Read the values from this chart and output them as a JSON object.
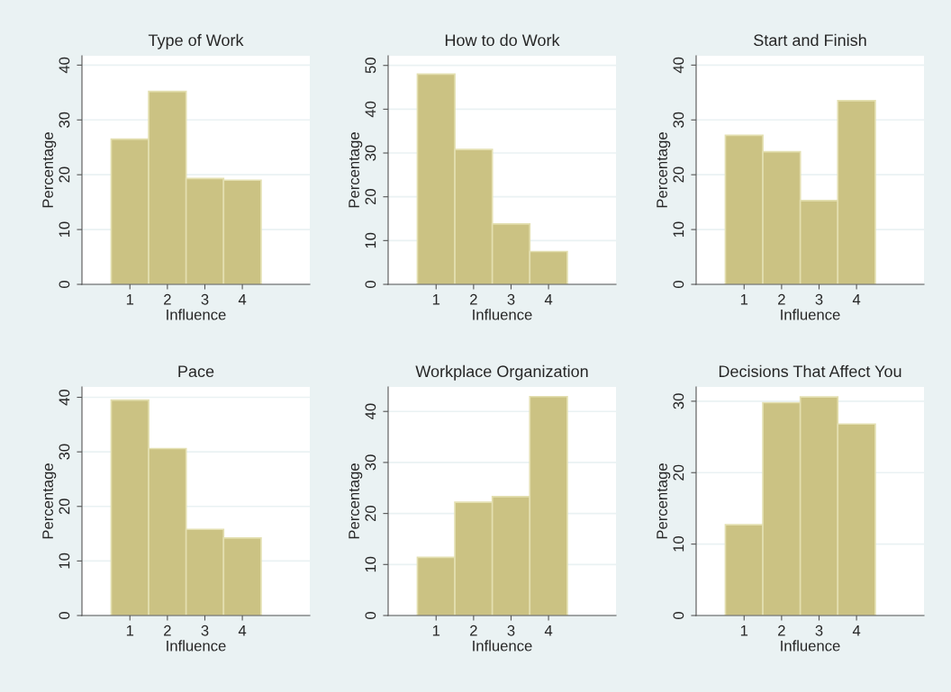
{
  "chart_data": [
    {
      "type": "histogram",
      "title": "Type of Work",
      "xlabel": "Influence",
      "ylabel": "Percentage",
      "bins": [
        0.5,
        1.5,
        2.5,
        3.5,
        4.5,
        5.5
      ],
      "values": [
        26.5,
        35.2,
        19.3,
        19.0,
        null
      ],
      "color": "#cbc283",
      "xlim": [
        -0.28,
        5.8
      ],
      "xticks": [
        1,
        2,
        3,
        4
      ],
      "ylim": [
        0,
        41.7
      ],
      "yticks": [
        0,
        10,
        20,
        30,
        40
      ],
      "grid": "y"
    },
    {
      "type": "histogram",
      "title": "How to do Work",
      "xlabel": "Influence",
      "ylabel": "Percentage",
      "bins": [
        0.5,
        1.5,
        2.5,
        3.5,
        4.5,
        5.5
      ],
      "values": [
        48.0,
        30.8,
        13.8,
        7.5,
        null
      ],
      "color": "#cbc283",
      "xlim": [
        -0.28,
        5.8
      ],
      "xticks": [
        1,
        2,
        3,
        4
      ],
      "ylim": [
        0,
        52.2
      ],
      "yticks": [
        0,
        10,
        20,
        30,
        40,
        50
      ],
      "grid": "y"
    },
    {
      "type": "histogram",
      "title": "Start and Finish",
      "xlabel": "Influence",
      "ylabel": "Percentage",
      "bins": [
        0.5,
        1.5,
        2.5,
        3.5,
        4.5,
        5.5
      ],
      "values": [
        27.2,
        24.2,
        15.3,
        33.5,
        null
      ],
      "color": "#cbc283",
      "xlim": [
        -0.28,
        5.8
      ],
      "xticks": [
        1,
        2,
        3,
        4
      ],
      "ylim": [
        0,
        41.7
      ],
      "yticks": [
        0,
        10,
        20,
        30,
        40
      ],
      "grid": "y"
    },
    {
      "type": "histogram",
      "title": "Pace",
      "xlabel": "Influence",
      "ylabel": "Percentage",
      "bins": [
        0.5,
        1.5,
        2.5,
        3.5,
        4.5,
        5.5
      ],
      "values": [
        39.5,
        30.6,
        15.8,
        14.2,
        null
      ],
      "color": "#cbc283",
      "xlim": [
        -0.28,
        5.8
      ],
      "xticks": [
        1,
        2,
        3,
        4
      ],
      "ylim": [
        0,
        41.9
      ],
      "yticks": [
        0,
        10,
        20,
        30,
        40
      ],
      "grid": "y"
    },
    {
      "type": "histogram",
      "title": "Workplace Organization",
      "xlabel": "Influence",
      "ylabel": "Percentage",
      "bins": [
        0.5,
        1.5,
        2.5,
        3.5,
        4.5,
        5.5
      ],
      "values": [
        11.4,
        22.2,
        23.3,
        42.9,
        null
      ],
      "color": "#cbc283",
      "xlim": [
        -0.28,
        5.8
      ],
      "xticks": [
        1,
        2,
        3,
        4
      ],
      "ylim": [
        0,
        44.8
      ],
      "yticks": [
        0,
        10,
        20,
        30,
        40
      ],
      "grid": "y"
    },
    {
      "type": "histogram",
      "title": "Decisions That Affect You",
      "xlabel": "Influence",
      "ylabel": "Percentage",
      "bins": [
        0.5,
        1.5,
        2.5,
        3.5,
        4.5,
        5.5
      ],
      "values": [
        12.7,
        29.8,
        30.6,
        26.8,
        null
      ],
      "color": "#cbc283",
      "xlim": [
        -0.28,
        5.8
      ],
      "xticks": [
        1,
        2,
        3,
        4
      ],
      "ylim": [
        0,
        32.0
      ],
      "yticks": [
        0,
        10,
        20,
        30
      ],
      "grid": "y"
    }
  ]
}
